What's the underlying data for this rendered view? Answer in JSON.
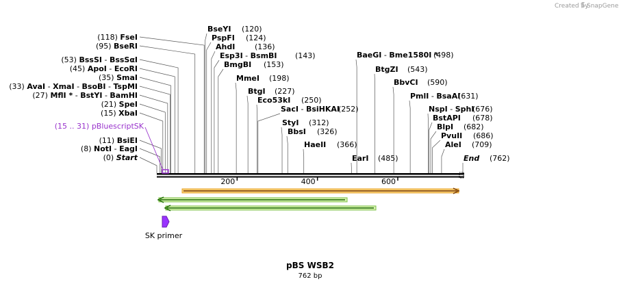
{
  "credit": {
    "created_by": "Created by",
    "brand": "SnapGene"
  },
  "map": {
    "name": "pBS WSB2",
    "length_label": "762 bp",
    "total_bp": 762,
    "ticks": [
      {
        "pos": 200,
        "label": "200"
      },
      {
        "pos": 400,
        "label": "400"
      },
      {
        "pos": 600,
        "label": "600"
      }
    ],
    "start_label": "Start",
    "start_pos_text": "(0)",
    "end_label": "End",
    "end_pos_text": "(762)",
    "region_label": "pBluescriptSK",
    "region_pos_text": "(15 .. 31)",
    "region_color": "#9933cc",
    "primer_label": "SK primer",
    "primer_color": "#9933ff",
    "orange_color": "#f0a020",
    "green_color": "#44aa00"
  },
  "sites_left": [
    {
      "pos": 0,
      "pos_text": "(0)",
      "names": [
        "Start"
      ],
      "italic": true
    },
    {
      "pos": 8,
      "pos_text": "(8)",
      "names": [
        "NotI",
        "EagI"
      ]
    },
    {
      "pos": 11,
      "pos_text": "(11)",
      "names": [
        "BsiEI"
      ]
    },
    {
      "pos": 15,
      "pos_text": "(15)",
      "names": [
        "XbaI"
      ]
    },
    {
      "pos": 21,
      "pos_text": "(21)",
      "names": [
        "SpeI"
      ]
    },
    {
      "pos": 27,
      "pos_text": "(27)",
      "names": [
        "MflI *",
        "BstYI",
        "BamHI"
      ]
    },
    {
      "pos": 33,
      "pos_text": "(33)",
      "names": [
        "AvaI",
        "XmaI",
        "BsoBI",
        "TspMI"
      ]
    },
    {
      "pos": 35,
      "pos_text": "(35)",
      "names": [
        "SmaI"
      ]
    },
    {
      "pos": 45,
      "pos_text": "(45)",
      "names": [
        "ApoI",
        "EcoRI"
      ]
    },
    {
      "pos": 53,
      "pos_text": "(53)",
      "names": [
        "BssSI",
        "BssSαI"
      ]
    },
    {
      "pos": 95,
      "pos_text": "(95)",
      "names": [
        "BseRI"
      ]
    },
    {
      "pos": 118,
      "pos_text": "(118)",
      "names": [
        "FseI"
      ]
    }
  ],
  "sites_right": [
    {
      "pos": 120,
      "pos_text": "(120)",
      "names": [
        "BseYI"
      ]
    },
    {
      "pos": 124,
      "pos_text": "(124)",
      "names": [
        "PspFI"
      ]
    },
    {
      "pos": 136,
      "pos_text": "(136)",
      "names": [
        "AhdI"
      ]
    },
    {
      "pos": 143,
      "pos_text": "(143)",
      "names": [
        "Esp3I",
        "BsmBI"
      ]
    },
    {
      "pos": 153,
      "pos_text": "(153)",
      "names": [
        "BmgBI"
      ]
    },
    {
      "pos": 198,
      "pos_text": "(198)",
      "names": [
        "MmeI"
      ]
    },
    {
      "pos": 227,
      "pos_text": "(227)",
      "names": [
        "BtgI"
      ]
    },
    {
      "pos": 250,
      "pos_text": "(250)",
      "names": [
        "Eco53kI"
      ]
    },
    {
      "pos": 252,
      "pos_text": "(252)",
      "names": [
        "SacI",
        "BsiHKAI"
      ]
    },
    {
      "pos": 312,
      "pos_text": "(312)",
      "names": [
        "StyI"
      ]
    },
    {
      "pos": 326,
      "pos_text": "(326)",
      "names": [
        "BbsI"
      ]
    },
    {
      "pos": 366,
      "pos_text": "(366)",
      "names": [
        "HaeII"
      ]
    },
    {
      "pos": 485,
      "pos_text": "(485)",
      "names": [
        "EarI"
      ]
    },
    {
      "pos": 498,
      "pos_text": "(498)",
      "names": [
        "BaeGI",
        "Bme1580I *"
      ]
    },
    {
      "pos": 543,
      "pos_text": "(543)",
      "names": [
        "BtgZI"
      ]
    },
    {
      "pos": 590,
      "pos_text": "(590)",
      "names": [
        "BbvCI"
      ]
    },
    {
      "pos": 631,
      "pos_text": "(631)",
      "names": [
        "PmlI",
        "BsaAI"
      ]
    },
    {
      "pos": 676,
      "pos_text": "(676)",
      "names": [
        "NspI",
        "SphI"
      ]
    },
    {
      "pos": 678,
      "pos_text": "(678)",
      "names": [
        "BstAPI"
      ]
    },
    {
      "pos": 682,
      "pos_text": "(682)",
      "names": [
        "BlpI"
      ]
    },
    {
      "pos": 686,
      "pos_text": "(686)",
      "names": [
        "PvuII"
      ]
    },
    {
      "pos": 709,
      "pos_text": "(709)",
      "names": [
        "AleI"
      ]
    },
    {
      "pos": 762,
      "pos_text": "(762)",
      "names": [
        "End"
      ],
      "italic": true
    }
  ]
}
